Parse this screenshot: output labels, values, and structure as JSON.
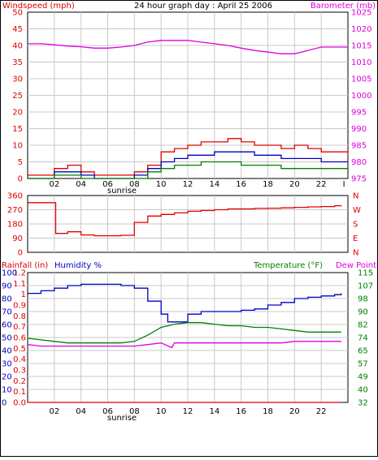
{
  "title": "24 hour graph day : April 25 2006",
  "colors": {
    "red": "#e00000",
    "magenta": "#e000e0",
    "blue": "#0000c0",
    "green": "#008000",
    "grid": "#c8c8c8",
    "frame": "#000000"
  },
  "chart_data": [
    {
      "type": "line",
      "id": "wind_baro",
      "ylabel_left": "Windspeed (mph)",
      "ylabel_right": "Barometer (mb)",
      "left_ticks": [
        "50",
        "45",
        "40",
        "35",
        "30",
        "25",
        "20",
        "15",
        "10",
        "5",
        "0"
      ],
      "right_ticks": [
        "1025",
        "1020",
        "1015",
        "1010",
        "1005",
        "1000",
        "995",
        "990",
        "985",
        "980",
        "975"
      ],
      "ylim_left": [
        0,
        50
      ],
      "ylim_right": [
        975,
        1025
      ],
      "x_ticks": [
        "02",
        "04",
        "06",
        "08",
        "10",
        "12",
        "14",
        "16",
        "18",
        "20",
        "22",
        "I"
      ],
      "annotation": "sunrise",
      "xlim": [
        0,
        24
      ],
      "series": [
        {
          "axis": "right",
          "color": "magenta",
          "x": [
            0,
            1,
            2,
            3,
            4,
            5,
            6,
            7,
            8,
            9,
            10,
            11,
            12,
            13,
            14,
            15,
            16,
            17,
            18,
            19,
            20,
            21,
            22,
            23,
            24
          ],
          "values": [
            1015.5,
            1015.5,
            1015.2,
            1014.8,
            1014.6,
            1014.2,
            1014.2,
            1014.5,
            1015,
            1016,
            1016.5,
            1016.5,
            1016.5,
            1016,
            1015.5,
            1015,
            1014.2,
            1013.5,
            1013,
            1012.5,
            1012.5,
            1013.5,
            1014.5,
            1014.5,
            1014.5
          ]
        },
        {
          "axis": "left",
          "color": "red",
          "x": [
            0,
            1,
            2,
            3,
            4,
            5,
            6,
            7,
            8,
            9,
            10,
            11,
            12,
            13,
            14,
            15,
            16,
            17,
            18,
            19,
            20,
            21,
            22,
            23,
            24
          ],
          "values": [
            1,
            1,
            3,
            4,
            2,
            1,
            1,
            1,
            2,
            4,
            8,
            9,
            10,
            11,
            11,
            12,
            11,
            10,
            10,
            9,
            10,
            9,
            8,
            8,
            7
          ]
        },
        {
          "axis": "left",
          "color": "blue",
          "x": [
            0,
            1,
            2,
            3,
            4,
            5,
            6,
            7,
            8,
            9,
            10,
            11,
            12,
            13,
            14,
            15,
            16,
            17,
            18,
            19,
            20,
            21,
            22,
            23,
            24
          ],
          "values": [
            0,
            0,
            2,
            2,
            1,
            0,
            0,
            0,
            1,
            3,
            5,
            6,
            7,
            7,
            8,
            8,
            8,
            7,
            7,
            6,
            6,
            6,
            5,
            5,
            5
          ]
        },
        {
          "axis": "left",
          "color": "green",
          "x": [
            0,
            1,
            2,
            3,
            4,
            5,
            6,
            7,
            8,
            9,
            10,
            11,
            12,
            13,
            14,
            15,
            16,
            17,
            18,
            19,
            20,
            21,
            22,
            23,
            24
          ],
          "values": [
            0,
            0,
            1,
            1,
            0,
            0,
            0,
            0,
            0,
            2,
            3,
            4,
            4,
            5,
            5,
            5,
            4,
            4,
            4,
            3,
            3,
            3,
            3,
            3,
            3
          ]
        }
      ]
    },
    {
      "type": "line",
      "id": "wind_dir",
      "left_ticks": [
        "360",
        "270",
        "180",
        "90",
        "0"
      ],
      "right_labels": [
        "N",
        "W",
        "S",
        "E",
        "N"
      ],
      "ylim": [
        0,
        360
      ],
      "xlim": [
        0,
        24
      ],
      "series": [
        {
          "color": "red",
          "x": [
            0,
            2,
            2.1,
            3,
            4,
            5,
            6,
            7,
            7.8,
            8,
            9,
            10,
            11,
            12,
            13,
            14,
            15,
            16,
            17,
            18,
            19,
            20,
            21,
            22,
            23,
            23.5
          ],
          "values": [
            315,
            315,
            120,
            130,
            110,
            105,
            105,
            108,
            108,
            190,
            230,
            240,
            250,
            260,
            265,
            270,
            275,
            275,
            278,
            280,
            282,
            285,
            288,
            290,
            295,
            298
          ]
        }
      ]
    },
    {
      "type": "line",
      "id": "humidity_temp",
      "ylabel_left_rain": "Rainfall (in)",
      "ylabel_left_hum": "Humidity %",
      "ylabel_right_temp": "Temperature (°F)",
      "ylabel_right_dew": "Dew Point",
      "rain_ticks": [
        "1.2",
        "1.1",
        "1",
        "0.9",
        "0.8",
        "0.7",
        "0.6",
        "0.5",
        "0.4",
        "0.3",
        "0.2",
        "0.1",
        "0.0"
      ],
      "humidity_ticks": [
        "100",
        "90",
        "80",
        "70",
        "60",
        "50",
        "40",
        "30",
        "20",
        "10",
        "0"
      ],
      "temp_ticks": [
        "115",
        "107",
        "98",
        "90",
        "82",
        "74",
        "65",
        "57",
        "49",
        "40",
        "32"
      ],
      "ylim_humidity": [
        0,
        100
      ],
      "ylim_temp": [
        32,
        115
      ],
      "x_ticks": [
        "02",
        "04",
        "06",
        "08",
        "10",
        "12",
        "14",
        "16",
        "18",
        "20",
        "22"
      ],
      "annotation": "sunrise",
      "xlim": [
        0,
        24
      ],
      "series": [
        {
          "name": "Humidity %",
          "color": "blue",
          "axis": "humidity",
          "x": [
            0,
            1,
            2,
            3,
            4,
            5,
            6,
            7,
            8,
            9,
            10,
            10.5,
            11,
            12,
            13,
            14,
            15,
            16,
            17,
            18,
            19,
            20,
            21,
            22,
            23,
            23.5
          ],
          "values": [
            84,
            86,
            88,
            90,
            91,
            91,
            91,
            90,
            88,
            78,
            68,
            62,
            62,
            68,
            70,
            70,
            70,
            71,
            72,
            75,
            77,
            80,
            81,
            82,
            83,
            84
          ]
        },
        {
          "name": "Temperature (°F)",
          "color": "green",
          "axis": "temp",
          "x": [
            0,
            1,
            2,
            3,
            4,
            5,
            6,
            7,
            8,
            9,
            10,
            11,
            12,
            13,
            14,
            15,
            16,
            17,
            18,
            19,
            20,
            21,
            22,
            23,
            23.5
          ],
          "values": [
            73,
            72,
            71,
            70,
            70,
            70,
            70,
            70,
            71,
            75,
            80,
            82,
            83,
            83,
            82,
            81,
            81,
            80,
            80,
            79,
            78,
            77,
            77,
            77,
            77
          ]
        },
        {
          "name": "Dew Point",
          "color": "magenta",
          "axis": "temp",
          "x": [
            0,
            1,
            2,
            3,
            4,
            5,
            6,
            7,
            8,
            9,
            10,
            10.8,
            11,
            12,
            13,
            14,
            15,
            16,
            17,
            18,
            19,
            20,
            21,
            22,
            23,
            23.5
          ],
          "values": [
            69,
            68,
            68,
            68,
            68,
            68,
            68,
            68,
            68,
            69,
            70,
            67,
            70,
            70,
            70,
            70,
            70,
            70,
            70,
            70,
            70,
            71,
            71,
            71,
            71,
            71
          ]
        },
        {
          "name": "Rainfall (in)",
          "color": "red",
          "axis": "humidity",
          "x": [
            0,
            23.5
          ],
          "values": [
            0,
            0
          ]
        }
      ]
    }
  ]
}
